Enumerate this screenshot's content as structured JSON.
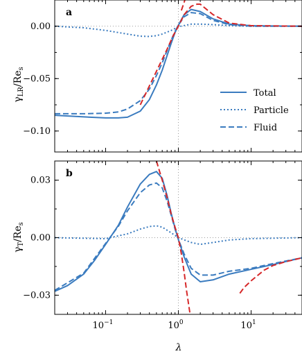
{
  "chart_data": [
    {
      "type": "line",
      "panel_label": "a",
      "ylabel_main": "γ",
      "ylabel_sub": "LR",
      "ylabel_tail": "/Re",
      "ylabel_tail_sub": "s",
      "xscale": "log",
      "xlim": [
        0.02,
        50
      ],
      "ylim": [
        -0.12,
        0.025
      ],
      "yticks": [
        0.0,
        -0.05,
        -0.1
      ],
      "ytick_labels": [
        "0.00",
        "−0.05",
        "−0.10"
      ],
      "vline": 1,
      "hline": 0,
      "legend": {
        "position": "right",
        "entries": [
          "Total",
          "Particle",
          "Fluid"
        ]
      },
      "series": [
        {
          "name": "Total",
          "style": "solid",
          "color": "#3a7bbf",
          "points": [
            [
              0.02,
              -0.085
            ],
            [
              0.05,
              -0.0865
            ],
            [
              0.1,
              -0.0875
            ],
            [
              0.15,
              -0.0875
            ],
            [
              0.2,
              -0.0868
            ],
            [
              0.3,
              -0.081
            ],
            [
              0.4,
              -0.07
            ],
            [
              0.5,
              -0.056
            ],
            [
              0.6,
              -0.042
            ],
            [
              0.7,
              -0.028
            ],
            [
              0.8,
              -0.016
            ],
            [
              0.9,
              -0.006
            ],
            [
              1.0,
              0.001
            ],
            [
              1.2,
              0.011
            ],
            [
              1.5,
              0.016
            ],
            [
              2.0,
              0.014
            ],
            [
              3.0,
              0.007
            ],
            [
              5.0,
              0.002
            ],
            [
              10,
              0.0005
            ],
            [
              50,
              0.0
            ]
          ]
        },
        {
          "name": "Particle",
          "style": "dotted",
          "color": "#3a7bbf",
          "points": [
            [
              0.02,
              0.0
            ],
            [
              0.05,
              -0.0015
            ],
            [
              0.1,
              -0.004
            ],
            [
              0.2,
              -0.0075
            ],
            [
              0.3,
              -0.0095
            ],
            [
              0.4,
              -0.0098
            ],
            [
              0.5,
              -0.009
            ],
            [
              0.6,
              -0.0075
            ],
            [
              0.8,
              -0.004
            ],
            [
              1.0,
              -0.0005
            ],
            [
              1.5,
              0.002
            ],
            [
              2.0,
              0.002
            ],
            [
              3.0,
              0.0015
            ],
            [
              5.0,
              0.0005
            ],
            [
              10,
              0.0
            ],
            [
              50,
              0.0
            ]
          ]
        },
        {
          "name": "Fluid",
          "style": "dashed",
          "color": "#3a7bbf",
          "points": [
            [
              0.02,
              -0.0835
            ],
            [
              0.05,
              -0.0835
            ],
            [
              0.1,
              -0.083
            ],
            [
              0.15,
              -0.0818
            ],
            [
              0.2,
              -0.079
            ],
            [
              0.3,
              -0.071
            ],
            [
              0.4,
              -0.06
            ],
            [
              0.5,
              -0.047
            ],
            [
              0.6,
              -0.035
            ],
            [
              0.7,
              -0.023
            ],
            [
              0.8,
              -0.013
            ],
            [
              0.9,
              -0.005
            ],
            [
              1.0,
              0.001
            ],
            [
              1.2,
              0.009
            ],
            [
              1.5,
              0.013
            ],
            [
              2.0,
              0.012
            ],
            [
              3.0,
              0.0055
            ],
            [
              5.0,
              0.0015
            ],
            [
              10,
              0.0
            ],
            [
              50,
              0.0
            ]
          ]
        },
        {
          "name": "Asymptote",
          "style": "dashed",
          "color": "#d62728",
          "points": [
            [
              0.3,
              -0.075
            ],
            [
              0.5,
              -0.043
            ],
            [
              0.7,
              -0.022
            ],
            [
              0.85,
              -0.009
            ],
            [
              1.0,
              0.0
            ],
            [
              1.2,
              0.011
            ],
            [
              1.5,
              0.019
            ],
            [
              1.8,
              0.021
            ],
            [
              2.0,
              0.021
            ],
            [
              3.0,
              0.011
            ],
            [
              5.0,
              0.003
            ],
            [
              10,
              0.0005
            ],
            [
              50,
              0.0
            ]
          ]
        },
        {
          "name": "Asymptote high",
          "style": "dashed",
          "color": "#d62728",
          "points": [
            [
              1.1,
              0.015
            ],
            [
              1.3,
              0.03
            ]
          ]
        }
      ]
    },
    {
      "type": "line",
      "panel_label": "b",
      "ylabel_main": "γ",
      "ylabel_sub": "T",
      "ylabel_tail": "/Re",
      "ylabel_tail_sub": "s",
      "xlabel": "λ",
      "xscale": "log",
      "xlim": [
        0.02,
        50
      ],
      "ylim": [
        -0.04,
        0.04
      ],
      "yticks": [
        0.03,
        0.0,
        -0.03
      ],
      "ytick_labels": [
        "0.03",
        "0.00",
        "−0.03"
      ],
      "xticks": [
        0.1,
        1,
        10
      ],
      "xtick_labels_base": [
        "10",
        "10",
        "10"
      ],
      "xtick_labels_exp": [
        "−1",
        "0",
        "1"
      ],
      "vline": 1,
      "hline": 0,
      "series": [
        {
          "name": "Total",
          "style": "solid",
          "color": "#3a7bbf",
          "points": [
            [
              0.02,
              -0.028
            ],
            [
              0.03,
              -0.025
            ],
            [
              0.05,
              -0.019
            ],
            [
              0.07,
              -0.012
            ],
            [
              0.1,
              -0.0035
            ],
            [
              0.15,
              0.0065
            ],
            [
              0.2,
              0.016
            ],
            [
              0.3,
              0.028
            ],
            [
              0.4,
              0.033
            ],
            [
              0.5,
              0.0345
            ],
            [
              0.6,
              0.031
            ],
            [
              0.7,
              0.022
            ],
            [
              0.8,
              0.0125
            ],
            [
              0.9,
              0.005
            ],
            [
              1.0,
              -0.001
            ],
            [
              1.2,
              -0.01
            ],
            [
              1.5,
              -0.019
            ],
            [
              2.0,
              -0.023
            ],
            [
              3.0,
              -0.022
            ],
            [
              5.0,
              -0.019
            ],
            [
              10,
              -0.0165
            ],
            [
              20,
              -0.014
            ],
            [
              50,
              -0.0105
            ]
          ]
        },
        {
          "name": "Particle",
          "style": "dotted",
          "color": "#3a7bbf",
          "points": [
            [
              0.02,
              0.0
            ],
            [
              0.1,
              -0.0005
            ],
            [
              0.2,
              0.002
            ],
            [
              0.3,
              0.0045
            ],
            [
              0.4,
              0.0058
            ],
            [
              0.5,
              0.0062
            ],
            [
              0.6,
              0.0055
            ],
            [
              0.8,
              0.0025
            ],
            [
              1.0,
              0.0
            ],
            [
              1.5,
              -0.0025
            ],
            [
              2.0,
              -0.0035
            ],
            [
              3.0,
              -0.0025
            ],
            [
              5.0,
              -0.0012
            ],
            [
              10,
              -0.0005
            ],
            [
              50,
              0.0
            ]
          ]
        },
        {
          "name": "Fluid",
          "style": "dashed",
          "color": "#3a7bbf",
          "points": [
            [
              0.02,
              -0.0275
            ],
            [
              0.05,
              -0.0185
            ],
            [
              0.1,
              -0.003
            ],
            [
              0.15,
              0.006
            ],
            [
              0.2,
              0.014
            ],
            [
              0.3,
              0.0235
            ],
            [
              0.4,
              0.0275
            ],
            [
              0.5,
              0.0285
            ],
            [
              0.6,
              0.026
            ],
            [
              0.7,
              0.019
            ],
            [
              0.8,
              0.0115
            ],
            [
              0.9,
              0.0045
            ],
            [
              1.0,
              -0.0008
            ],
            [
              1.2,
              -0.0085
            ],
            [
              1.5,
              -0.016
            ],
            [
              2.0,
              -0.0195
            ],
            [
              3.0,
              -0.0195
            ],
            [
              5.0,
              -0.0175
            ],
            [
              10,
              -0.016
            ],
            [
              20,
              -0.0135
            ],
            [
              50,
              -0.0105
            ]
          ]
        },
        {
          "name": "Asymptote small",
          "style": "dashed",
          "color": "#d62728",
          "points": [
            [
              0.5,
              0.04
            ],
            [
              0.6,
              0.03
            ],
            [
              0.7,
              0.021
            ],
            [
              0.8,
              0.012
            ],
            [
              0.9,
              0.0055
            ],
            [
              1.0,
              0.0
            ],
            [
              1.1,
              -0.0085
            ],
            [
              1.2,
              -0.018
            ],
            [
              1.3,
              -0.028
            ],
            [
              1.45,
              -0.04
            ]
          ]
        },
        {
          "name": "Asymptote large",
          "style": "dashed",
          "color": "#d62728",
          "points": [
            [
              7,
              -0.029
            ],
            [
              8,
              -0.026
            ],
            [
              10,
              -0.0225
            ],
            [
              15,
              -0.017
            ],
            [
              20,
              -0.0145
            ],
            [
              30,
              -0.0125
            ],
            [
              50,
              -0.0105
            ]
          ]
        }
      ]
    }
  ]
}
